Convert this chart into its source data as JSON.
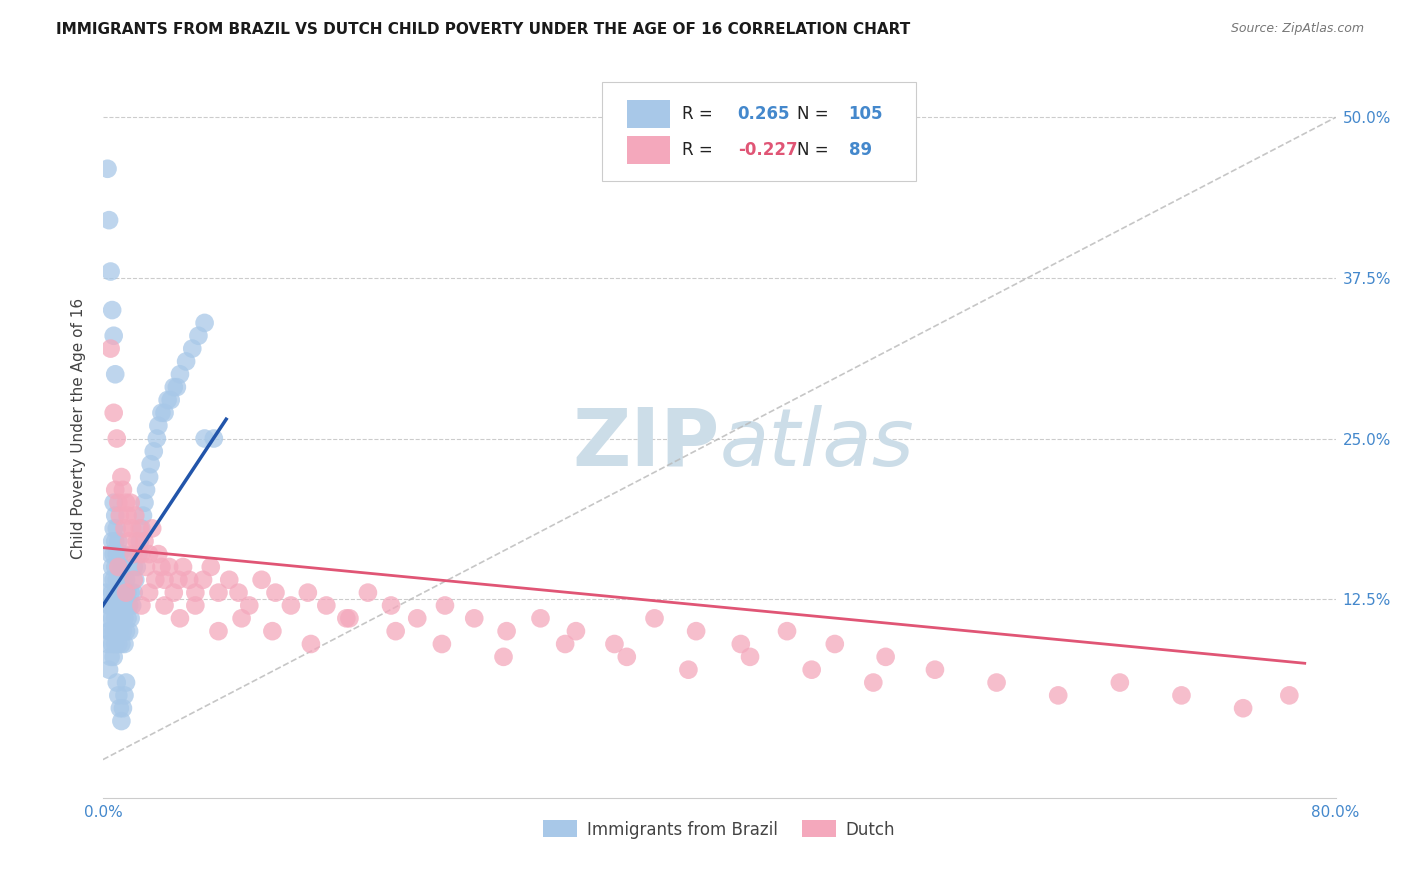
{
  "title": "IMMIGRANTS FROM BRAZIL VS DUTCH CHILD POVERTY UNDER THE AGE OF 16 CORRELATION CHART",
  "source": "Source: ZipAtlas.com",
  "ylabel": "Child Poverty Under the Age of 16",
  "ytick_labels": [
    "50.0%",
    "37.5%",
    "25.0%",
    "12.5%"
  ],
  "ytick_values": [
    0.5,
    0.375,
    0.25,
    0.125
  ],
  "xmin": 0.0,
  "xmax": 0.8,
  "ymin": -0.03,
  "ymax": 0.545,
  "blue_R": "0.265",
  "blue_N": "105",
  "pink_R": "-0.227",
  "pink_N": "89",
  "blue_color": "#a8c8e8",
  "pink_color": "#f4a8bc",
  "blue_line_color": "#2255aa",
  "pink_line_color": "#e05575",
  "watermark_color": "#ccdde8",
  "blue_points_x": [
    0.002,
    0.003,
    0.003,
    0.004,
    0.004,
    0.004,
    0.005,
    0.005,
    0.005,
    0.005,
    0.005,
    0.006,
    0.006,
    0.006,
    0.006,
    0.006,
    0.007,
    0.007,
    0.007,
    0.007,
    0.007,
    0.007,
    0.007,
    0.008,
    0.008,
    0.008,
    0.008,
    0.008,
    0.008,
    0.009,
    0.009,
    0.009,
    0.009,
    0.009,
    0.01,
    0.01,
    0.01,
    0.01,
    0.01,
    0.011,
    0.011,
    0.011,
    0.011,
    0.012,
    0.012,
    0.012,
    0.012,
    0.013,
    0.013,
    0.013,
    0.013,
    0.014,
    0.014,
    0.014,
    0.015,
    0.015,
    0.015,
    0.016,
    0.016,
    0.017,
    0.017,
    0.018,
    0.018,
    0.019,
    0.02,
    0.02,
    0.021,
    0.022,
    0.023,
    0.024,
    0.025,
    0.026,
    0.027,
    0.028,
    0.03,
    0.031,
    0.033,
    0.035,
    0.036,
    0.038,
    0.04,
    0.042,
    0.044,
    0.046,
    0.048,
    0.05,
    0.054,
    0.058,
    0.062,
    0.066,
    0.003,
    0.004,
    0.005,
    0.006,
    0.007,
    0.008,
    0.009,
    0.01,
    0.011,
    0.012,
    0.013,
    0.014,
    0.015,
    0.066,
    0.072
  ],
  "blue_points_y": [
    0.13,
    0.09,
    0.11,
    0.07,
    0.1,
    0.12,
    0.08,
    0.1,
    0.12,
    0.14,
    0.16,
    0.09,
    0.11,
    0.13,
    0.15,
    0.17,
    0.08,
    0.1,
    0.12,
    0.14,
    0.16,
    0.18,
    0.2,
    0.09,
    0.11,
    0.13,
    0.15,
    0.17,
    0.19,
    0.1,
    0.12,
    0.14,
    0.16,
    0.18,
    0.09,
    0.11,
    0.13,
    0.15,
    0.17,
    0.1,
    0.12,
    0.14,
    0.16,
    0.09,
    0.11,
    0.13,
    0.15,
    0.1,
    0.12,
    0.14,
    0.16,
    0.09,
    0.11,
    0.13,
    0.1,
    0.12,
    0.14,
    0.11,
    0.13,
    0.1,
    0.12,
    0.11,
    0.13,
    0.12,
    0.13,
    0.15,
    0.14,
    0.15,
    0.16,
    0.17,
    0.18,
    0.19,
    0.2,
    0.21,
    0.22,
    0.23,
    0.24,
    0.25,
    0.26,
    0.27,
    0.27,
    0.28,
    0.28,
    0.29,
    0.29,
    0.3,
    0.31,
    0.32,
    0.33,
    0.34,
    0.46,
    0.42,
    0.38,
    0.35,
    0.33,
    0.3,
    0.06,
    0.05,
    0.04,
    0.03,
    0.04,
    0.05,
    0.06,
    0.25,
    0.25
  ],
  "pink_points_x": [
    0.005,
    0.007,
    0.008,
    0.009,
    0.01,
    0.011,
    0.012,
    0.013,
    0.014,
    0.015,
    0.016,
    0.017,
    0.018,
    0.019,
    0.02,
    0.021,
    0.022,
    0.024,
    0.025,
    0.027,
    0.028,
    0.03,
    0.032,
    0.034,
    0.036,
    0.038,
    0.04,
    0.043,
    0.046,
    0.049,
    0.052,
    0.056,
    0.06,
    0.065,
    0.07,
    0.075,
    0.082,
    0.088,
    0.095,
    0.103,
    0.112,
    0.122,
    0.133,
    0.145,
    0.158,
    0.172,
    0.187,
    0.204,
    0.222,
    0.241,
    0.262,
    0.284,
    0.307,
    0.332,
    0.358,
    0.385,
    0.414,
    0.444,
    0.475,
    0.508,
    0.01,
    0.015,
    0.02,
    0.025,
    0.03,
    0.04,
    0.05,
    0.06,
    0.075,
    0.09,
    0.11,
    0.135,
    0.16,
    0.19,
    0.22,
    0.26,
    0.3,
    0.34,
    0.38,
    0.42,
    0.46,
    0.5,
    0.54,
    0.58,
    0.62,
    0.66,
    0.7,
    0.74,
    0.77
  ],
  "pink_points_y": [
    0.32,
    0.27,
    0.21,
    0.25,
    0.2,
    0.19,
    0.22,
    0.21,
    0.18,
    0.2,
    0.19,
    0.17,
    0.2,
    0.18,
    0.16,
    0.19,
    0.17,
    0.18,
    0.16,
    0.17,
    0.15,
    0.16,
    0.18,
    0.14,
    0.16,
    0.15,
    0.14,
    0.15,
    0.13,
    0.14,
    0.15,
    0.14,
    0.13,
    0.14,
    0.15,
    0.13,
    0.14,
    0.13,
    0.12,
    0.14,
    0.13,
    0.12,
    0.13,
    0.12,
    0.11,
    0.13,
    0.12,
    0.11,
    0.12,
    0.11,
    0.1,
    0.11,
    0.1,
    0.09,
    0.11,
    0.1,
    0.09,
    0.1,
    0.09,
    0.08,
    0.15,
    0.13,
    0.14,
    0.12,
    0.13,
    0.12,
    0.11,
    0.12,
    0.1,
    0.11,
    0.1,
    0.09,
    0.11,
    0.1,
    0.09,
    0.08,
    0.09,
    0.08,
    0.07,
    0.08,
    0.07,
    0.06,
    0.07,
    0.06,
    0.05,
    0.06,
    0.05,
    0.04,
    0.05
  ]
}
